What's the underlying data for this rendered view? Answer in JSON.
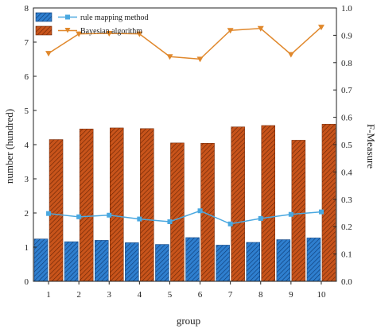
{
  "chart_data": {
    "type": "bar",
    "categories": [
      "1",
      "2",
      "3",
      "4",
      "5",
      "6",
      "7",
      "8",
      "9",
      "10"
    ],
    "xlabel": "group",
    "ylabel": "number (hundred)",
    "y2label": "F-Measure",
    "ylim": [
      0,
      8
    ],
    "y2lim": [
      0,
      1.0
    ],
    "yticks": [
      "0",
      "1",
      "2",
      "3",
      "4",
      "5",
      "6",
      "7",
      "8"
    ],
    "y2ticks": [
      "0.0",
      "0.1",
      "0.2",
      "0.3",
      "0.4",
      "0.5",
      "0.6",
      "0.7",
      "0.8",
      "0.9",
      "1.0"
    ],
    "grid": false,
    "legend_position": "top-left",
    "series": [
      {
        "name": "rule mapping method",
        "kind": "bar",
        "axis": "left",
        "color": "#2f7fcf",
        "values": [
          1.24,
          1.16,
          1.2,
          1.13,
          1.08,
          1.28,
          1.06,
          1.14,
          1.22,
          1.27
        ]
      },
      {
        "name": "Bayesian algorithm",
        "kind": "bar",
        "axis": "left",
        "color": "#c8541b",
        "values": [
          4.15,
          4.46,
          4.49,
          4.47,
          4.05,
          4.04,
          4.52,
          4.56,
          4.13,
          4.6
        ]
      },
      {
        "name": "rule mapping method",
        "kind": "line",
        "axis": "right",
        "marker": "square",
        "color": "#4aa8e0",
        "values": [
          0.248,
          0.236,
          0.242,
          0.228,
          0.218,
          0.258,
          0.21,
          0.23,
          0.245,
          0.254
        ]
      },
      {
        "name": "Bayesian algorithm",
        "kind": "line",
        "axis": "right",
        "marker": "triangle-down",
        "color": "#e0882c",
        "values": [
          0.834,
          0.905,
          0.907,
          0.905,
          0.822,
          0.813,
          0.918,
          0.925,
          0.83,
          0.93
        ]
      }
    ]
  }
}
